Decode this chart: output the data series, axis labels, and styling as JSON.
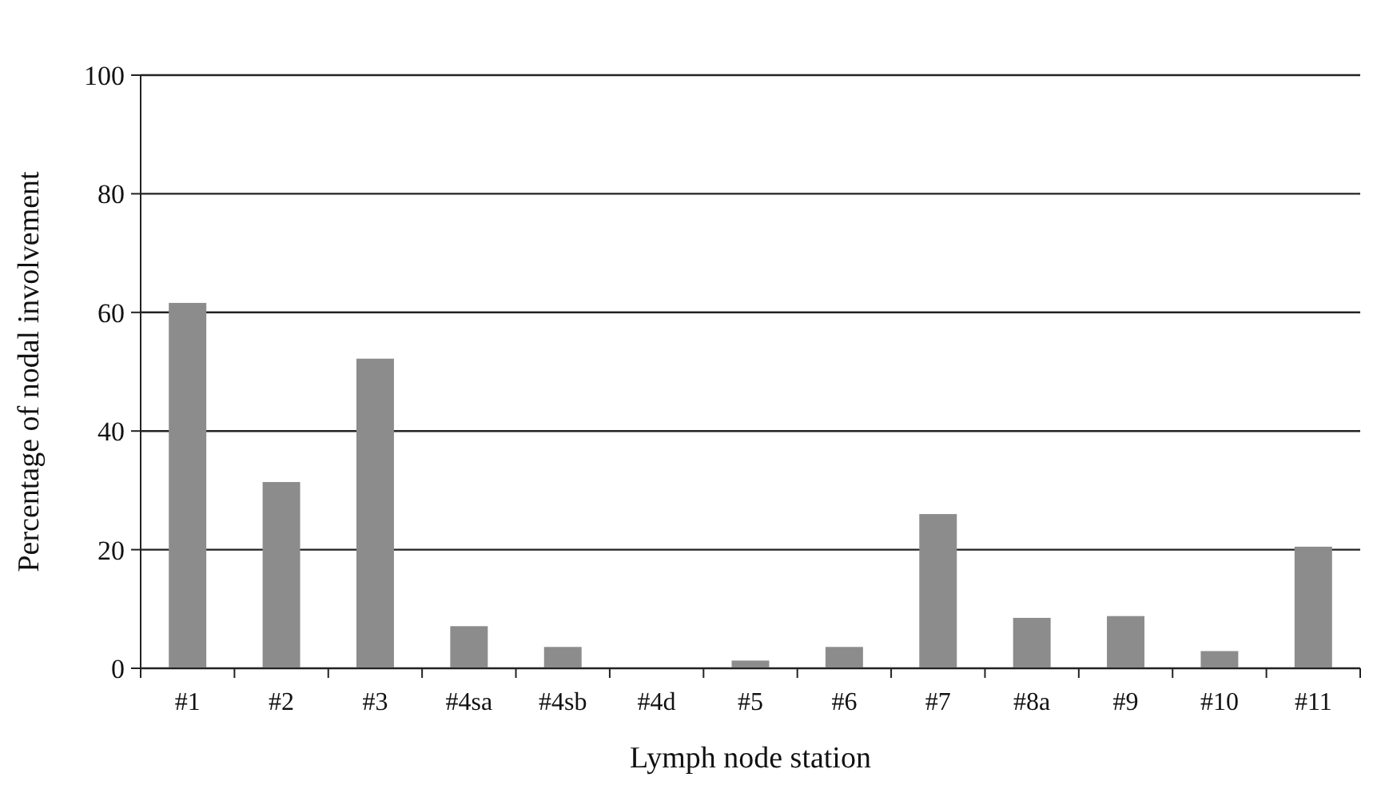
{
  "chart_data": {
    "type": "bar",
    "xlabel": "Lymph node station",
    "ylabel": "Percentage of nodal involvement",
    "categories": [
      "#1",
      "#2",
      "#3",
      "#4sa",
      "#4sb",
      "#4d",
      "#5",
      "#6",
      "#7",
      "#8a",
      "#9",
      "#10",
      "#11"
    ],
    "values": [
      61.6,
      31.4,
      52.2,
      7.1,
      3.6,
      0,
      1.3,
      3.6,
      26.0,
      8.5,
      8.8,
      2.9,
      20.5
    ],
    "color": "#8c8c8c",
    "ylim": [
      0,
      100
    ],
    "yticks": [
      0,
      20,
      40,
      60,
      80,
      100
    ],
    "grid": "y"
  }
}
